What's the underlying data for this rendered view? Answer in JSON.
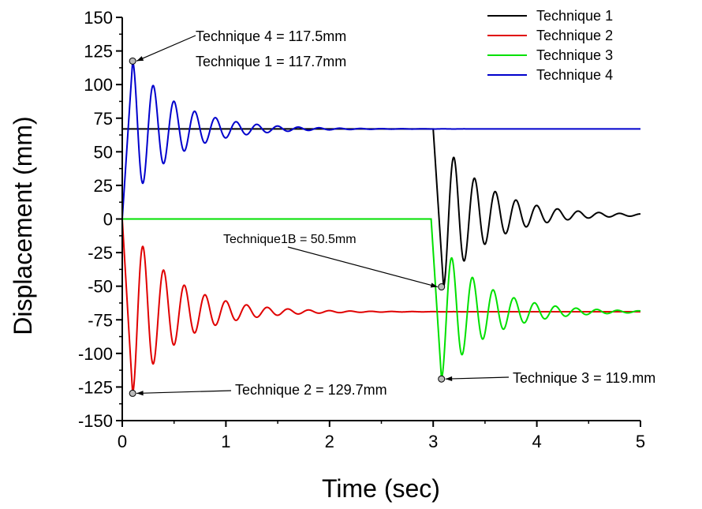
{
  "chart_data": {
    "type": "line",
    "xlabel": "Time (sec)",
    "ylabel": "Displacement (mm)",
    "xlim": [
      0,
      5
    ],
    "ylim": [
      -150,
      150
    ],
    "x_ticks": [
      0,
      1,
      2,
      3,
      4,
      5
    ],
    "y_ticks": [
      -150,
      -125,
      -100,
      -75,
      -50,
      -25,
      0,
      25,
      50,
      75,
      100,
      125,
      150
    ],
    "grid": false,
    "legend_position": "top-right",
    "series": [
      {
        "name": "Technique 1",
        "color": "#000000",
        "model": {
          "segments": [
            {
              "x_start": 0,
              "x_end": 3.0,
              "y_const": 67
            },
            {
              "x_start": 3.0,
              "x_end": 5,
              "t0": 3.0,
              "y_final": 3,
              "y_initial": 67,
              "first_min": -50.5,
              "period": 0.2,
              "decay": 0.2
            }
          ]
        }
      },
      {
        "name": "Technique 2",
        "color": "#e00000",
        "model": {
          "segments": [
            {
              "x_start": 0,
              "x_end": 5,
              "t0": 0,
              "y_final": -69,
              "y_initial": 0,
              "first_min": -129.7,
              "period": 0.2,
              "decay": 0.2
            }
          ]
        }
      },
      {
        "name": "Technique 3",
        "color": "#00e000",
        "model": {
          "segments": [
            {
              "x_start": 0,
              "x_end": 2.98,
              "y_const": 0
            },
            {
              "x_start": 2.98,
              "x_end": 5,
              "t0": 2.98,
              "y_final": -69,
              "y_initial": 0,
              "first_min": -119,
              "period": 0.2,
              "decay": 0.2
            }
          ]
        }
      },
      {
        "name": "Technique 4",
        "color": "#0000cc",
        "model": {
          "segments": [
            {
              "x_start": 0,
              "x_end": 5,
              "t0": 0,
              "y_final": 67,
              "y_initial": 0,
              "first_min": 117.5,
              "period": 0.2,
              "decay": 0.2
            }
          ]
        }
      }
    ],
    "annotations": [
      {
        "text": "Technique 4 = 117.5mm",
        "point": [
          0.1,
          117.5
        ]
      },
      {
        "text": "Technique 1 = 117.7mm",
        "point": [
          0.1,
          117.7
        ]
      },
      {
        "text": "Technique1B = 50.5mm",
        "point": [
          3.08,
          -50.5
        ]
      },
      {
        "text": "Technique 2 = 129.7mm",
        "point": [
          0.1,
          -129.7
        ]
      },
      {
        "text": "Technique 3 = 119.mm",
        "point": [
          3.08,
          -119
        ]
      }
    ]
  }
}
